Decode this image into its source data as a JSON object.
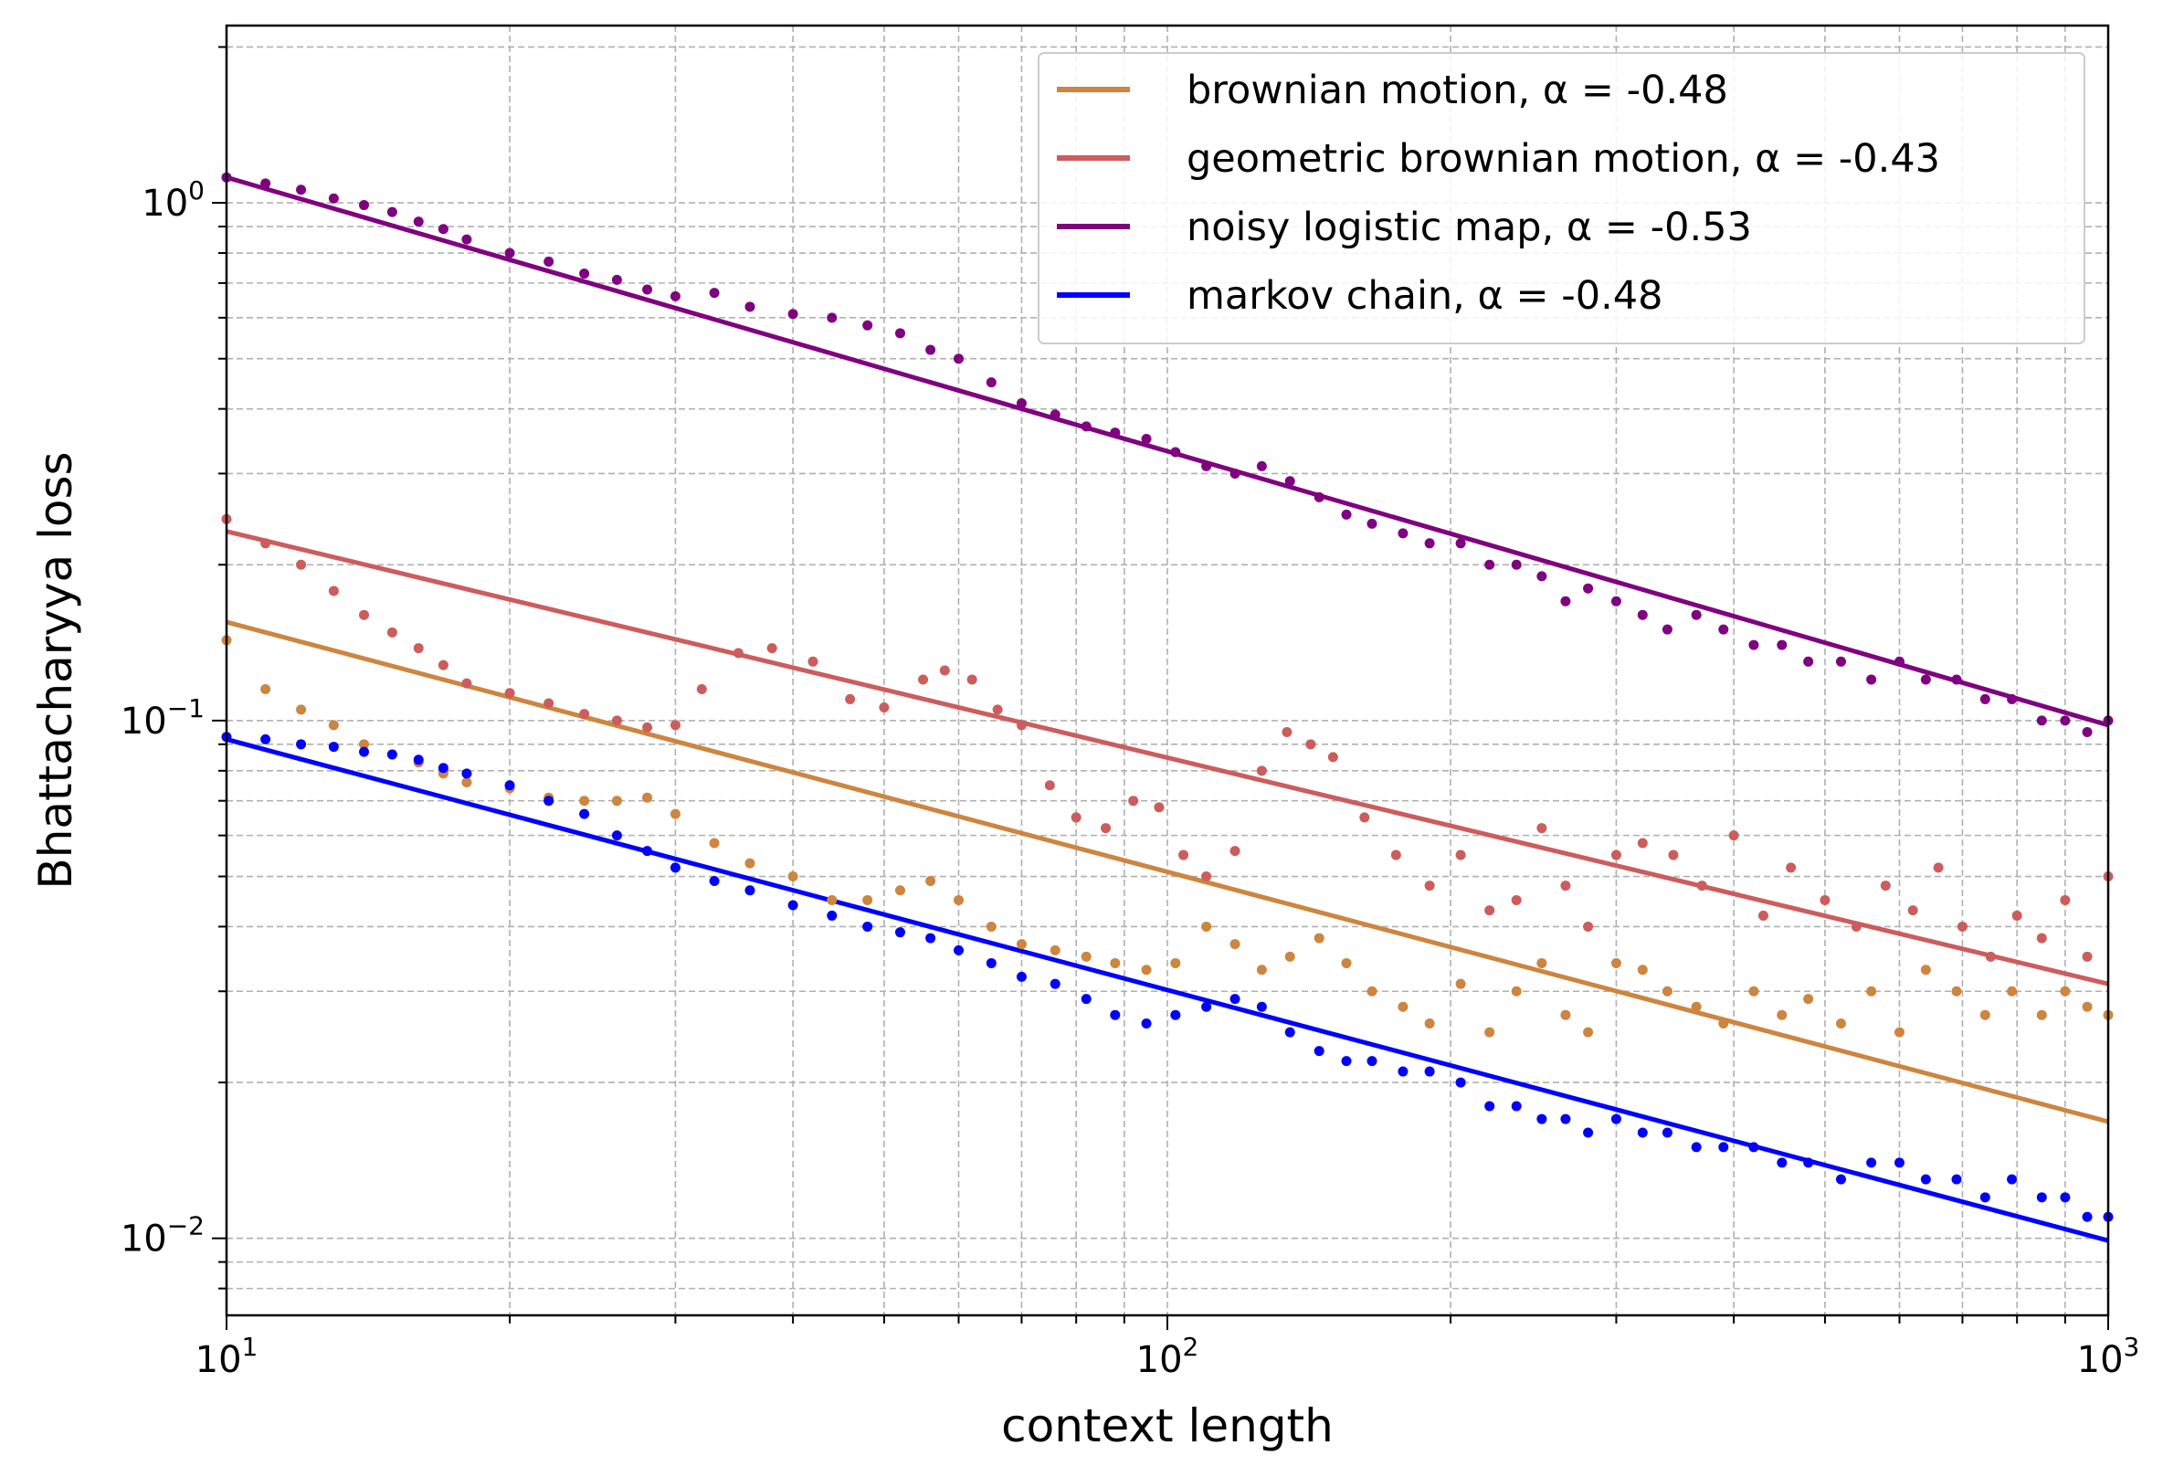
{
  "chart_data": {
    "type": "scatter",
    "xlabel": "context length",
    "ylabel": "Bhattacharyya loss",
    "xscale": "log",
    "yscale": "log",
    "xlim": [
      10,
      1000
    ],
    "ylim": [
      0.0071,
      2.2
    ],
    "grid": true,
    "legend_position": "top-right",
    "x_ticks": [
      {
        "value": 10,
        "base": "10",
        "exp": "1"
      },
      {
        "value": 100,
        "base": "10",
        "exp": "2"
      },
      {
        "value": 1000,
        "base": "10",
        "exp": "3"
      }
    ],
    "y_ticks": [
      {
        "value": 0.01,
        "base": "10",
        "exp": "−2"
      },
      {
        "value": 0.1,
        "base": "10",
        "exp": "−1"
      },
      {
        "value": 1,
        "base": "10",
        "exp": "0"
      }
    ],
    "series": [
      {
        "name": "brownian motion, α = -0.48",
        "color": "#cd853f",
        "fit": {
          "x": [
            10,
            1000
          ],
          "y": [
            0.155,
            0.0168
          ]
        },
        "points": [
          [
            10,
            0.143
          ],
          [
            11,
            0.115
          ],
          [
            12,
            0.105
          ],
          [
            13,
            0.098
          ],
          [
            14,
            0.09
          ],
          [
            15,
            0.086
          ],
          [
            16,
            0.083
          ],
          [
            17,
            0.079
          ],
          [
            18,
            0.076
          ],
          [
            20,
            0.074
          ],
          [
            22,
            0.071
          ],
          [
            24,
            0.07
          ],
          [
            26,
            0.07
          ],
          [
            28,
            0.071
          ],
          [
            30,
            0.066
          ],
          [
            33,
            0.058
          ],
          [
            36,
            0.053
          ],
          [
            40,
            0.05
          ],
          [
            44,
            0.045
          ],
          [
            48,
            0.045
          ],
          [
            52,
            0.047
          ],
          [
            56,
            0.049
          ],
          [
            60,
            0.045
          ],
          [
            65,
            0.04
          ],
          [
            70,
            0.037
          ],
          [
            76,
            0.036
          ],
          [
            82,
            0.035
          ],
          [
            88,
            0.034
          ],
          [
            95,
            0.033
          ],
          [
            102,
            0.034
          ],
          [
            110,
            0.04
          ],
          [
            118,
            0.037
          ],
          [
            126,
            0.033
          ],
          [
            135,
            0.035
          ],
          [
            145,
            0.038
          ],
          [
            155,
            0.034
          ],
          [
            165,
            0.03
          ],
          [
            178,
            0.028
          ],
          [
            190,
            0.026
          ],
          [
            205,
            0.031
          ],
          [
            220,
            0.025
          ],
          [
            235,
            0.03
          ],
          [
            250,
            0.034
          ],
          [
            265,
            0.027
          ],
          [
            280,
            0.025
          ],
          [
            300,
            0.034
          ],
          [
            320,
            0.033
          ],
          [
            340,
            0.03
          ],
          [
            365,
            0.028
          ],
          [
            390,
            0.026
          ],
          [
            420,
            0.03
          ],
          [
            450,
            0.027
          ],
          [
            480,
            0.029
          ],
          [
            520,
            0.026
          ],
          [
            560,
            0.03
          ],
          [
            600,
            0.025
          ],
          [
            640,
            0.033
          ],
          [
            690,
            0.03
          ],
          [
            740,
            0.027
          ],
          [
            790,
            0.03
          ],
          [
            850,
            0.027
          ],
          [
            900,
            0.03
          ],
          [
            950,
            0.028
          ],
          [
            1000,
            0.027
          ]
        ]
      },
      {
        "name": "geometric brownian motion, α = -0.43",
        "color": "#cd5c5c",
        "fit": {
          "x": [
            10,
            1000
          ],
          "y": [
            0.232,
            0.031
          ]
        },
        "points": [
          [
            10,
            0.245
          ],
          [
            11,
            0.22
          ],
          [
            12,
            0.2
          ],
          [
            13,
            0.178
          ],
          [
            14,
            0.16
          ],
          [
            15,
            0.148
          ],
          [
            16,
            0.138
          ],
          [
            17,
            0.128
          ],
          [
            18,
            0.118
          ],
          [
            20,
            0.113
          ],
          [
            22,
            0.108
          ],
          [
            24,
            0.103
          ],
          [
            26,
            0.1
          ],
          [
            28,
            0.097
          ],
          [
            30,
            0.098
          ],
          [
            32,
            0.115
          ],
          [
            35,
            0.135
          ],
          [
            38,
            0.138
          ],
          [
            42,
            0.13
          ],
          [
            46,
            0.11
          ],
          [
            50,
            0.106
          ],
          [
            55,
            0.12
          ],
          [
            58,
            0.125
          ],
          [
            62,
            0.12
          ],
          [
            66,
            0.105
          ],
          [
            70,
            0.098
          ],
          [
            75,
            0.075
          ],
          [
            80,
            0.065
          ],
          [
            86,
            0.062
          ],
          [
            92,
            0.07
          ],
          [
            98,
            0.068
          ],
          [
            104,
            0.055
          ],
          [
            110,
            0.05
          ],
          [
            118,
            0.056
          ],
          [
            126,
            0.08
          ],
          [
            134,
            0.095
          ],
          [
            142,
            0.09
          ],
          [
            150,
            0.085
          ],
          [
            162,
            0.065
          ],
          [
            175,
            0.055
          ],
          [
            190,
            0.048
          ],
          [
            205,
            0.055
          ],
          [
            220,
            0.043
          ],
          [
            235,
            0.045
          ],
          [
            250,
            0.062
          ],
          [
            265,
            0.048
          ],
          [
            280,
            0.04
          ],
          [
            300,
            0.055
          ],
          [
            320,
            0.058
          ],
          [
            345,
            0.055
          ],
          [
            370,
            0.048
          ],
          [
            400,
            0.06
          ],
          [
            430,
            0.042
          ],
          [
            460,
            0.052
          ],
          [
            500,
            0.045
          ],
          [
            540,
            0.04
          ],
          [
            580,
            0.048
          ],
          [
            620,
            0.043
          ],
          [
            660,
            0.052
          ],
          [
            700,
            0.04
          ],
          [
            750,
            0.035
          ],
          [
            800,
            0.042
          ],
          [
            850,
            0.038
          ],
          [
            900,
            0.045
          ],
          [
            950,
            0.035
          ],
          [
            1000,
            0.05
          ]
        ]
      },
      {
        "name": "noisy logistic map, α = -0.53",
        "color": "#800080",
        "fit": {
          "x": [
            10,
            1000
          ],
          "y": [
            1.12,
            0.098
          ]
        },
        "points": [
          [
            10,
            1.12
          ],
          [
            11,
            1.09
          ],
          [
            12,
            1.06
          ],
          [
            13,
            1.02
          ],
          [
            14,
            0.99
          ],
          [
            15,
            0.96
          ],
          [
            16,
            0.92
          ],
          [
            17,
            0.89
          ],
          [
            18,
            0.85
          ],
          [
            20,
            0.8
          ],
          [
            22,
            0.77
          ],
          [
            24,
            0.73
          ],
          [
            26,
            0.71
          ],
          [
            28,
            0.68
          ],
          [
            30,
            0.66
          ],
          [
            33,
            0.67
          ],
          [
            36,
            0.63
          ],
          [
            40,
            0.61
          ],
          [
            44,
            0.6
          ],
          [
            48,
            0.58
          ],
          [
            52,
            0.56
          ],
          [
            56,
            0.52
          ],
          [
            60,
            0.5
          ],
          [
            65,
            0.45
          ],
          [
            70,
            0.41
          ],
          [
            76,
            0.39
          ],
          [
            82,
            0.37
          ],
          [
            88,
            0.36
          ],
          [
            95,
            0.35
          ],
          [
            102,
            0.33
          ],
          [
            110,
            0.31
          ],
          [
            118,
            0.3
          ],
          [
            126,
            0.31
          ],
          [
            135,
            0.29
          ],
          [
            145,
            0.27
          ],
          [
            155,
            0.25
          ],
          [
            165,
            0.24
          ],
          [
            178,
            0.23
          ],
          [
            190,
            0.22
          ],
          [
            205,
            0.22
          ],
          [
            220,
            0.2
          ],
          [
            235,
            0.2
          ],
          [
            250,
            0.19
          ],
          [
            265,
            0.17
          ],
          [
            280,
            0.18
          ],
          [
            300,
            0.17
          ],
          [
            320,
            0.16
          ],
          [
            340,
            0.15
          ],
          [
            365,
            0.16
          ],
          [
            390,
            0.15
          ],
          [
            420,
            0.14
          ],
          [
            450,
            0.14
          ],
          [
            480,
            0.13
          ],
          [
            520,
            0.13
          ],
          [
            560,
            0.12
          ],
          [
            600,
            0.13
          ],
          [
            640,
            0.12
          ],
          [
            690,
            0.12
          ],
          [
            740,
            0.11
          ],
          [
            790,
            0.11
          ],
          [
            850,
            0.1
          ],
          [
            900,
            0.1
          ],
          [
            950,
            0.095
          ],
          [
            1000,
            0.1
          ]
        ]
      },
      {
        "name": "markov chain, α = -0.48",
        "color": "#0000ff",
        "fit": {
          "x": [
            10,
            1000
          ],
          "y": [
            0.092,
            0.0099
          ]
        },
        "points": [
          [
            10,
            0.093
          ],
          [
            11,
            0.092
          ],
          [
            12,
            0.09
          ],
          [
            13,
            0.089
          ],
          [
            14,
            0.087
          ],
          [
            15,
            0.086
          ],
          [
            16,
            0.084
          ],
          [
            17,
            0.081
          ],
          [
            18,
            0.079
          ],
          [
            20,
            0.075
          ],
          [
            22,
            0.07
          ],
          [
            24,
            0.066
          ],
          [
            26,
            0.06
          ],
          [
            28,
            0.056
          ],
          [
            30,
            0.052
          ],
          [
            33,
            0.049
          ],
          [
            36,
            0.047
          ],
          [
            40,
            0.044
          ],
          [
            44,
            0.042
          ],
          [
            48,
            0.04
          ],
          [
            52,
            0.039
          ],
          [
            56,
            0.038
          ],
          [
            60,
            0.036
          ],
          [
            65,
            0.034
          ],
          [
            70,
            0.032
          ],
          [
            76,
            0.031
          ],
          [
            82,
            0.029
          ],
          [
            88,
            0.027
          ],
          [
            95,
            0.026
          ],
          [
            102,
            0.027
          ],
          [
            110,
            0.028
          ],
          [
            118,
            0.029
          ],
          [
            126,
            0.028
          ],
          [
            135,
            0.025
          ],
          [
            145,
            0.023
          ],
          [
            155,
            0.022
          ],
          [
            165,
            0.022
          ],
          [
            178,
            0.021
          ],
          [
            190,
            0.021
          ],
          [
            205,
            0.02
          ],
          [
            220,
            0.018
          ],
          [
            235,
            0.018
          ],
          [
            250,
            0.017
          ],
          [
            265,
            0.017
          ],
          [
            280,
            0.016
          ],
          [
            300,
            0.017
          ],
          [
            320,
            0.016
          ],
          [
            340,
            0.016
          ],
          [
            365,
            0.015
          ],
          [
            390,
            0.015
          ],
          [
            420,
            0.015
          ],
          [
            450,
            0.014
          ],
          [
            480,
            0.014
          ],
          [
            520,
            0.013
          ],
          [
            560,
            0.014
          ],
          [
            600,
            0.014
          ],
          [
            640,
            0.013
          ],
          [
            690,
            0.013
          ],
          [
            740,
            0.012
          ],
          [
            790,
            0.013
          ],
          [
            850,
            0.012
          ],
          [
            900,
            0.012
          ],
          [
            950,
            0.011
          ],
          [
            1000,
            0.011
          ]
        ]
      }
    ]
  }
}
